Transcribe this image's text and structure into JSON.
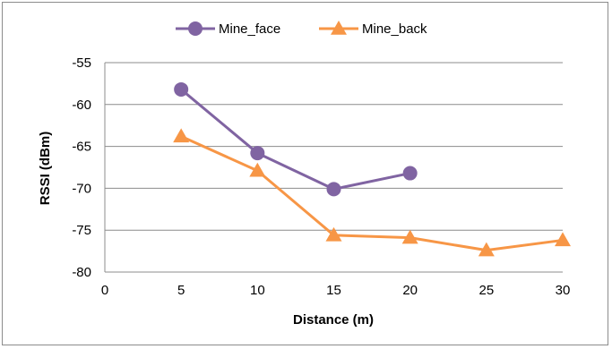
{
  "chart_data": {
    "type": "line",
    "x": [
      0,
      5,
      10,
      15,
      20,
      25,
      30
    ],
    "xlabel": "Distance (m)",
    "ylabel": "RSSI (dBm)",
    "xlim": [
      0,
      30
    ],
    "ylim": [
      -80,
      -55
    ],
    "x_ticks": [
      "0",
      "5",
      "10",
      "15",
      "20",
      "25",
      "30"
    ],
    "y_ticks": [
      "-55",
      "-60",
      "-65",
      "-70",
      "-75",
      "-80"
    ],
    "grid": "horizontal",
    "legend_position": "top",
    "series": [
      {
        "name": "Mine_face",
        "color": "#8064a2",
        "marker": "circle",
        "points": [
          [
            5,
            -58.2
          ],
          [
            10,
            -65.8
          ],
          [
            15,
            -70.1
          ],
          [
            20,
            -68.2
          ]
        ]
      },
      {
        "name": "Mine_back",
        "color": "#f79646",
        "marker": "triangle",
        "points": [
          [
            5,
            -63.8
          ],
          [
            10,
            -67.9
          ],
          [
            15,
            -75.6
          ],
          [
            20,
            -75.9
          ],
          [
            25,
            -77.4
          ],
          [
            30,
            -76.2
          ]
        ]
      }
    ]
  }
}
